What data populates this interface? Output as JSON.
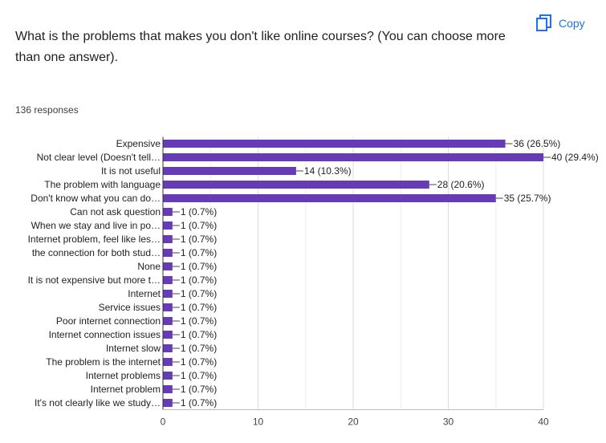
{
  "question": "What is the problems that makes you don't like online courses? (You can choose more than one answer).",
  "copy_label": "Copy",
  "responses_text": "136 responses",
  "colors": {
    "bar": "#673ab7",
    "accent": "#1a73e8",
    "grid": "#e8e8e8",
    "axis": "#333333"
  },
  "icons": {
    "copy": "copy-icon"
  },
  "chart_data": {
    "type": "bar",
    "orientation": "horizontal",
    "title": "",
    "xlabel": "",
    "ylabel": "",
    "xlim": [
      0,
      40
    ],
    "ticks": [
      0,
      10,
      20,
      30,
      40
    ],
    "grid": true,
    "categories": [
      "Expensive",
      "Not clear level (Doesn't tell…",
      "It is not useful",
      "The problem with language",
      "Don't know what you can do…",
      "Can not ask question",
      "When we stay and live in po…",
      "Internet problem, feel like les…",
      "the connection for both stud…",
      "None",
      "It is not expensive but more t…",
      "Internet",
      "Service issues",
      "Poor internet connection",
      "Internet connection issues",
      "Internet slow",
      "The problem is the internet",
      "Internet problems",
      "Internet problem",
      "It's not clearly like we study…"
    ],
    "values": [
      36,
      40,
      14,
      28,
      35,
      1,
      1,
      1,
      1,
      1,
      1,
      1,
      1,
      1,
      1,
      1,
      1,
      1,
      1,
      1
    ],
    "labels": [
      "36 (26.5%)",
      "40 (29.4%)",
      "14 (10.3%)",
      "28 (20.6%)",
      "35 (25.7%)",
      "1 (0.7%)",
      "1 (0.7%)",
      "1 (0.7%)",
      "1 (0.7%)",
      "1 (0.7%)",
      "1 (0.7%)",
      "1 (0.7%)",
      "1 (0.7%)",
      "1 (0.7%)",
      "1 (0.7%)",
      "1 (0.7%)",
      "1 (0.7%)",
      "1 (0.7%)",
      "1 (0.7%)",
      "1 (0.7%)"
    ]
  }
}
